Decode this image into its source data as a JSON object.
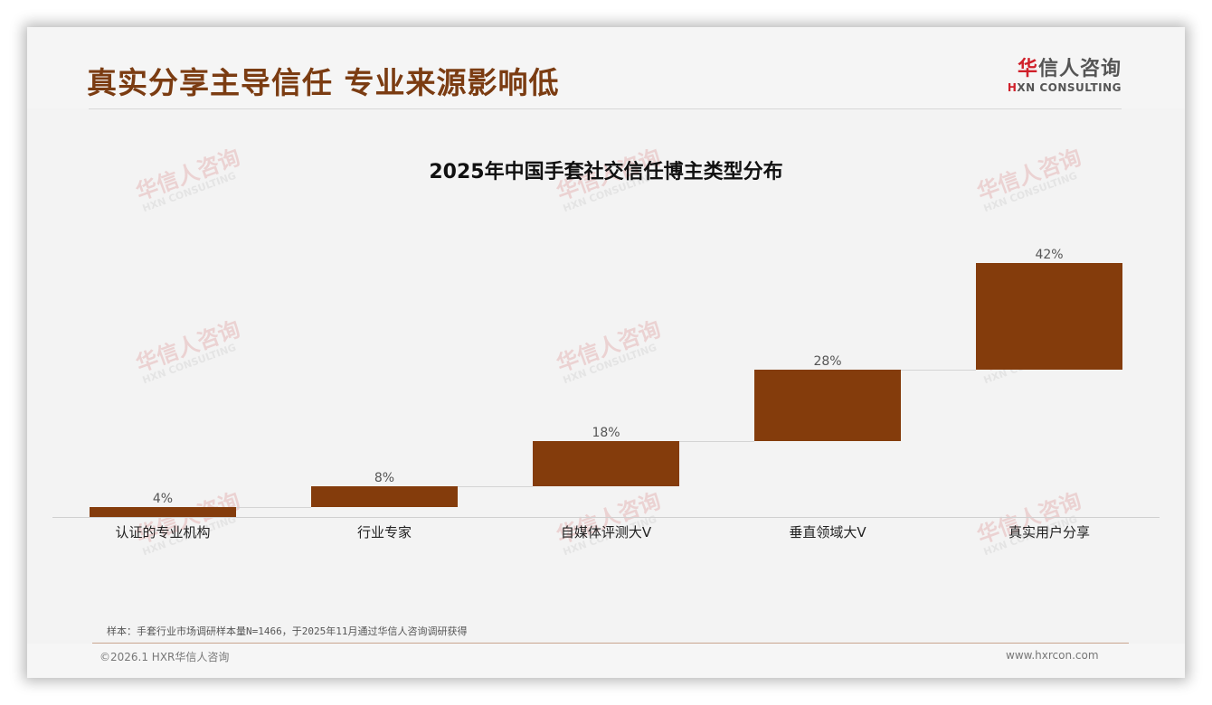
{
  "header": {
    "title": "真实分享主导信任 专业来源影响低",
    "logo": {
      "cn_first": "华",
      "cn_rest": "信人咨询",
      "en_first": "H",
      "en_rest": "XN CONSULTING"
    }
  },
  "watermark": {
    "cn": "华信人咨询",
    "en": "HXN CONSULTING"
  },
  "chart_data": {
    "type": "bar",
    "subtype": "waterfall",
    "title": "2025年中国手套社交信任博主类型分布",
    "categories": [
      "认证的专业机构",
      "行业专家",
      "自媒体评测大V",
      "垂直领域大V",
      "真实用户分享"
    ],
    "values": [
      4,
      8,
      18,
      28,
      42
    ],
    "value_labels": [
      "4%",
      "8%",
      "18%",
      "28%",
      "42%"
    ],
    "cumulative_start": [
      0,
      4,
      12,
      30,
      58
    ],
    "cumulative_end": [
      4,
      12,
      30,
      58,
      100
    ],
    "unit": "%",
    "xlabel": "",
    "ylabel": "",
    "ylim": [
      0,
      100
    ],
    "grid": false,
    "legend": "none",
    "bar_color": "#843c0c"
  },
  "footer": {
    "note": "样本：手套行业市场调研样本量N=1466，于2025年11月通过华信人咨询调研获得",
    "copyright": "©2026.1 HXR华信人咨询",
    "website": "www.hxrcon.com"
  }
}
